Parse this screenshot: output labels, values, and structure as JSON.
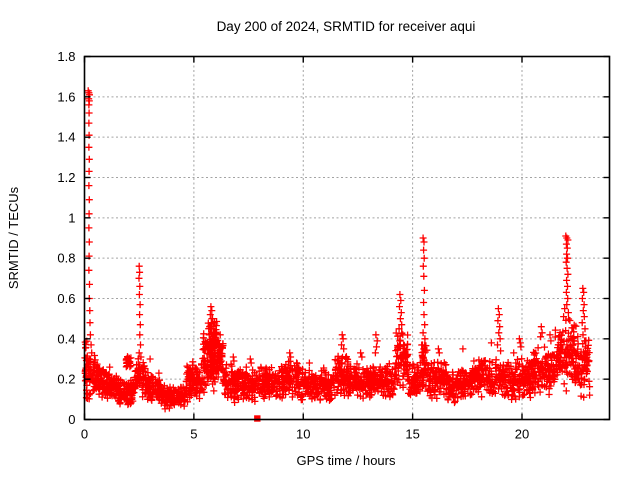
{
  "figure": {
    "background": "#ffffff",
    "axis_color": "#000000",
    "grid_color": "#a3a3a3",
    "marker_color": "#ff0000"
  },
  "chart_data": {
    "type": "scatter",
    "title": "Day 200 of 2024, SRMTID for receiver aqui",
    "xlabel": "GPS time / hours",
    "ylabel": "SRMTID / TECUs",
    "xlim": [
      0,
      24
    ],
    "ylim": [
      0,
      1.8
    ],
    "xticks": [
      [
        0,
        "0"
      ],
      [
        5,
        "5"
      ],
      [
        10,
        "10"
      ],
      [
        15,
        "15"
      ],
      [
        20,
        "20"
      ]
    ],
    "yticks": [
      [
        0,
        "0"
      ],
      [
        0.2,
        "0.2"
      ],
      [
        0.4,
        "0.4"
      ],
      [
        0.6,
        "0.6"
      ],
      [
        0.8,
        "0.8"
      ],
      [
        1,
        "1"
      ],
      [
        1.2,
        "1.2"
      ],
      [
        1.4,
        "1.4"
      ],
      [
        1.6,
        "1.6"
      ],
      [
        1.8,
        "1.8"
      ]
    ],
    "grid": true,
    "legend": "none",
    "series": [
      {
        "name": "SRMTID",
        "marker": "plus",
        "color": "#ff0000",
        "points": [
          [
            0.17,
            1.63
          ],
          [
            0.2,
            1.62
          ],
          [
            0.23,
            1.61
          ],
          [
            0.19,
            1.59
          ],
          [
            0.22,
            1.58
          ],
          [
            0.2,
            1.56
          ],
          [
            0.21,
            1.52
          ],
          [
            0.2,
            1.47
          ],
          [
            0.21,
            1.41
          ],
          [
            0.2,
            1.35
          ],
          [
            0.22,
            1.29
          ],
          [
            0.21,
            1.23
          ],
          [
            0.2,
            1.16
          ],
          [
            0.22,
            1.09
          ],
          [
            0.21,
            1.02
          ],
          [
            0.2,
            0.95
          ],
          [
            0.22,
            0.88
          ],
          [
            0.21,
            0.81
          ],
          [
            0.2,
            0.74
          ],
          [
            0.23,
            0.67
          ],
          [
            0.22,
            0.6
          ],
          [
            0.24,
            0.54
          ],
          [
            0.25,
            0.48
          ],
          [
            0.27,
            0.42
          ],
          [
            0.3,
            0.37
          ],
          [
            0.33,
            0.33
          ],
          [
            1.15,
            0.26
          ],
          [
            2.5,
            0.76
          ],
          [
            2.52,
            0.73
          ],
          [
            2.49,
            0.7
          ],
          [
            2.53,
            0.66
          ],
          [
            2.51,
            0.62
          ],
          [
            2.54,
            0.57
          ],
          [
            2.52,
            0.52
          ],
          [
            2.55,
            0.47
          ],
          [
            2.53,
            0.42
          ],
          [
            2.56,
            0.37
          ],
          [
            2.5,
            0.33
          ],
          [
            2.58,
            0.31
          ],
          [
            3.0,
            0.3
          ],
          [
            3.4,
            0.23
          ],
          [
            5.78,
            0.56
          ],
          [
            5.82,
            0.54
          ],
          [
            5.75,
            0.52
          ],
          [
            5.85,
            0.5
          ],
          [
            5.8,
            0.48
          ],
          [
            5.72,
            0.46
          ],
          [
            5.88,
            0.45
          ],
          [
            5.95,
            0.43
          ],
          [
            5.7,
            0.42
          ],
          [
            6.0,
            0.4
          ],
          [
            6.8,
            0.31
          ],
          [
            6.83,
            0.29
          ],
          [
            7.58,
            0.3
          ],
          [
            7.62,
            0.28
          ],
          [
            9.38,
            0.33
          ],
          [
            9.42,
            0.31
          ],
          [
            10.28,
            0.28
          ],
          [
            11.78,
            0.42
          ],
          [
            11.82,
            0.4
          ],
          [
            11.75,
            0.37
          ],
          [
            11.85,
            0.35
          ],
          [
            12.62,
            0.33
          ],
          [
            12.68,
            0.31
          ],
          [
            13.32,
            0.42
          ],
          [
            13.38,
            0.39
          ],
          [
            13.35,
            0.36
          ],
          [
            13.3,
            0.33
          ],
          [
            14.42,
            0.62
          ],
          [
            14.46,
            0.59
          ],
          [
            14.4,
            0.56
          ],
          [
            14.48,
            0.53
          ],
          [
            14.44,
            0.5
          ],
          [
            14.5,
            0.47
          ],
          [
            14.38,
            0.45
          ],
          [
            14.55,
            0.42
          ],
          [
            15.48,
            0.9
          ],
          [
            15.52,
            0.88
          ],
          [
            15.5,
            0.84
          ],
          [
            15.53,
            0.8
          ],
          [
            15.49,
            0.76
          ],
          [
            15.51,
            0.71
          ],
          [
            15.54,
            0.64
          ],
          [
            15.5,
            0.58
          ],
          [
            15.52,
            0.52
          ],
          [
            15.55,
            0.47
          ],
          [
            15.48,
            0.43
          ],
          [
            15.56,
            0.4
          ],
          [
            15.45,
            0.37
          ],
          [
            16.18,
            0.35
          ],
          [
            16.22,
            0.33
          ],
          [
            17.3,
            0.35
          ],
          [
            17.8,
            0.29
          ],
          [
            18.6,
            0.38
          ],
          [
            18.92,
            0.55
          ],
          [
            18.96,
            0.52
          ],
          [
            18.9,
            0.49
          ],
          [
            18.98,
            0.46
          ],
          [
            18.94,
            0.43
          ],
          [
            19.0,
            0.4
          ],
          [
            18.88,
            0.37
          ],
          [
            19.02,
            0.34
          ],
          [
            19.62,
            0.33
          ],
          [
            19.88,
            0.4
          ],
          [
            19.92,
            0.38
          ],
          [
            19.95,
            0.36
          ],
          [
            20.88,
            0.46
          ],
          [
            20.92,
            0.43
          ],
          [
            20.85,
            0.41
          ],
          [
            21.28,
            0.42
          ],
          [
            21.32,
            0.39
          ],
          [
            22.0,
            0.91
          ],
          [
            22.05,
            0.9
          ],
          [
            22.1,
            0.89
          ],
          [
            22.03,
            0.87
          ],
          [
            22.07,
            0.85
          ],
          [
            22.04,
            0.82
          ],
          [
            22.08,
            0.8
          ],
          [
            22.02,
            0.78
          ],
          [
            22.06,
            0.75
          ],
          [
            22.1,
            0.72
          ],
          [
            22.04,
            0.69
          ],
          [
            22.08,
            0.66
          ],
          [
            22.03,
            0.63
          ],
          [
            22.09,
            0.6
          ],
          [
            22.05,
            0.57
          ],
          [
            21.95,
            0.55
          ],
          [
            22.12,
            0.53
          ],
          [
            21.9,
            0.51
          ],
          [
            22.78,
            0.65
          ],
          [
            22.82,
            0.63
          ],
          [
            22.76,
            0.6
          ],
          [
            22.84,
            0.57
          ],
          [
            22.8,
            0.54
          ],
          [
            22.85,
            0.51
          ],
          [
            22.75,
            0.48
          ],
          [
            22.88,
            0.45
          ],
          [
            22.79,
            0.42
          ],
          [
            22.86,
            0.39
          ],
          [
            22.9,
            0.36
          ]
        ],
        "density_bands_encoding": "[x_start, x_end, y_min, y_max, point_count] - uniform-x, center-weighted-y noise floor",
        "density_bands": [
          [
            0.02,
            0.15,
            0.08,
            0.42,
            30
          ],
          [
            0.15,
            0.6,
            0.1,
            0.34,
            55
          ],
          [
            0.6,
            0.95,
            0.1,
            0.28,
            45
          ],
          [
            0.95,
            1.6,
            0.08,
            0.24,
            85
          ],
          [
            1.6,
            2.3,
            0.06,
            0.2,
            85
          ],
          [
            1.9,
            2.15,
            0.24,
            0.32,
            18
          ],
          [
            2.3,
            2.8,
            0.1,
            0.32,
            55
          ],
          [
            2.8,
            3.5,
            0.07,
            0.24,
            80
          ],
          [
            3.5,
            4.6,
            0.05,
            0.17,
            125
          ],
          [
            4.6,
            5.4,
            0.08,
            0.3,
            95
          ],
          [
            5.4,
            6.35,
            0.13,
            0.46,
            150
          ],
          [
            5.6,
            6.1,
            0.24,
            0.52,
            55
          ],
          [
            6.35,
            7.2,
            0.08,
            0.28,
            90
          ],
          [
            7.2,
            8.3,
            0.07,
            0.27,
            115
          ],
          [
            8.3,
            9.2,
            0.09,
            0.27,
            100
          ],
          [
            9.2,
            9.8,
            0.1,
            0.31,
            60
          ],
          [
            9.8,
            11.3,
            0.08,
            0.26,
            160
          ],
          [
            11.3,
            12.1,
            0.1,
            0.33,
            90
          ],
          [
            12.1,
            13.2,
            0.09,
            0.29,
            115
          ],
          [
            13.2,
            14.2,
            0.09,
            0.29,
            105
          ],
          [
            14.2,
            14.8,
            0.13,
            0.46,
            80
          ],
          [
            14.8,
            15.35,
            0.09,
            0.28,
            60
          ],
          [
            15.35,
            15.75,
            0.12,
            0.4,
            55
          ],
          [
            15.75,
            16.6,
            0.09,
            0.31,
            90
          ],
          [
            16.6,
            17.6,
            0.07,
            0.26,
            105
          ],
          [
            17.6,
            18.7,
            0.09,
            0.31,
            115
          ],
          [
            18.7,
            19.3,
            0.11,
            0.31,
            60
          ],
          [
            19.3,
            20.4,
            0.09,
            0.31,
            115
          ],
          [
            20.4,
            21.5,
            0.11,
            0.37,
            125
          ],
          [
            21.5,
            22.55,
            0.14,
            0.5,
            135
          ],
          [
            22.55,
            23.1,
            0.1,
            0.4,
            60
          ]
        ]
      }
    ],
    "special_points": [
      {
        "x": 7.9,
        "y": 0,
        "marker": "filled-square",
        "color": "#ff0000"
      }
    ]
  }
}
